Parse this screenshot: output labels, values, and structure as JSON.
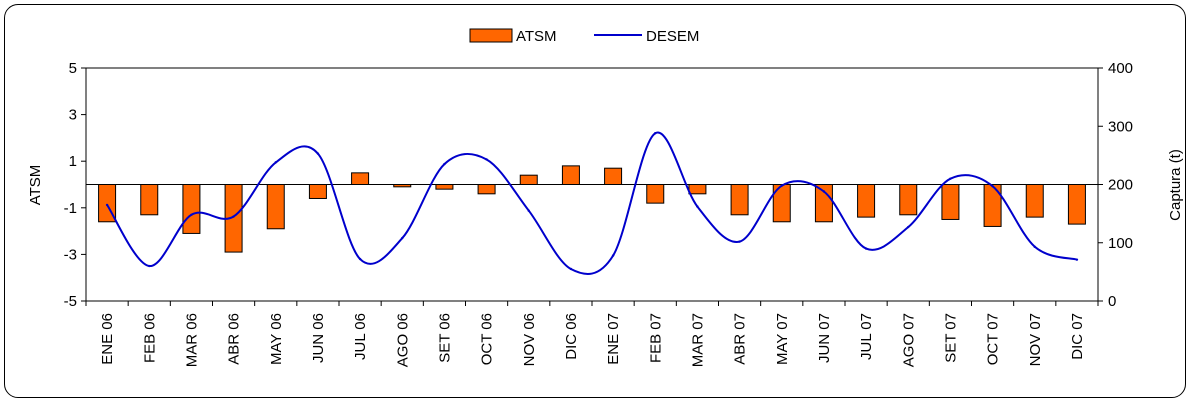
{
  "chart_data": {
    "type": "bar+line",
    "categories": [
      "ENE 06",
      "FEB 06",
      "MAR 06",
      "ABR 06",
      "MAY 06",
      "JUN 06",
      "JUL 06",
      "AGO 06",
      "SET 06",
      "OCT 06",
      "NOV 06",
      "DIC 06",
      "ENE 07",
      "FEB 07",
      "MAR 07",
      "ABR 07",
      "MAY 07",
      "JUN 07",
      "JUL 07",
      "AGO 07",
      "SET 07",
      "OCT 07",
      "NOV 07",
      "DIC 07"
    ],
    "series": [
      {
        "name": "ATSM",
        "type": "bar",
        "axis": "left",
        "color": "#FF6600",
        "values": [
          -1.6,
          -1.3,
          -2.1,
          -2.9,
          -1.9,
          -0.6,
          0.5,
          -0.1,
          -0.2,
          -0.4,
          0.4,
          0.8,
          0.7,
          -0.8,
          -0.4,
          -1.3,
          -1.6,
          -1.6,
          -1.4,
          -1.3,
          -1.5,
          -1.8,
          -1.4,
          -1.7
        ]
      },
      {
        "name": "DESEM",
        "type": "line",
        "axis": "right",
        "color": "#0000CC",
        "values": [
          165,
          60,
          148,
          145,
          238,
          253,
          72,
          108,
          235,
          243,
          155,
          55,
          78,
          288,
          162,
          102,
          198,
          188,
          90,
          127,
          210,
          197,
          93,
          71
        ]
      }
    ],
    "y_left": {
      "label": "ATSM",
      "min": -5,
      "max": 5,
      "ticks": [
        5,
        3,
        1,
        -1,
        -3,
        -5
      ]
    },
    "y_right": {
      "label": "Captura (t)",
      "min": 0,
      "max": 400,
      "ticks": [
        400,
        300,
        200,
        100,
        0
      ]
    },
    "legend": {
      "position": "top-center",
      "entries": [
        "ATSM",
        "DESEM"
      ]
    },
    "grid": false
  }
}
